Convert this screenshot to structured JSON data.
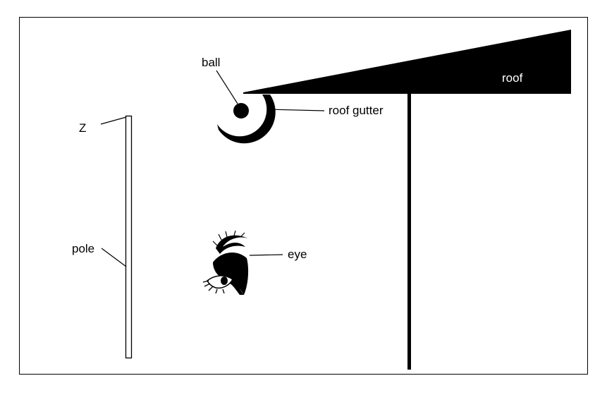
{
  "labels": {
    "roof": "roof",
    "ball": "ball",
    "roof_gutter": "roof gutter",
    "z": "Z",
    "pole": "pole",
    "eye": "eye"
  },
  "colors": {
    "ink": "#000000",
    "paper": "#ffffff"
  },
  "icons": {
    "eye": "eye-icon"
  }
}
